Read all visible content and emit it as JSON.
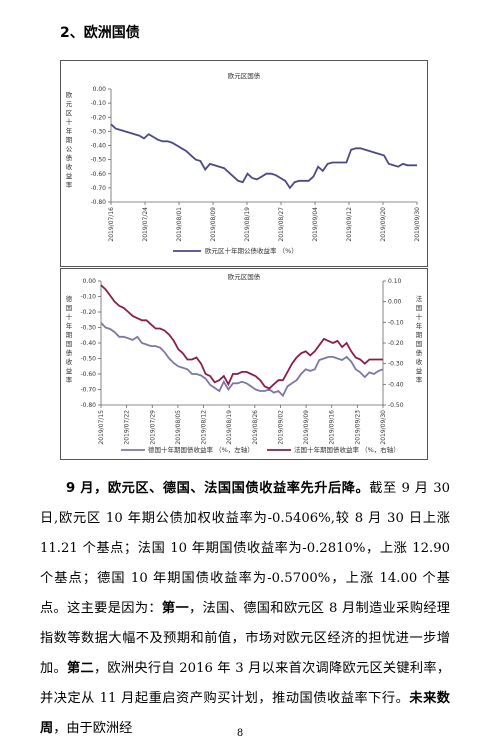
{
  "heading": "2、欧洲国债",
  "chart_data": [
    {
      "type": "line",
      "title": "欧元区国债",
      "ylabel": [
        "欧",
        "元",
        "区",
        "十",
        "年",
        "期",
        "公",
        "债",
        "收",
        "益",
        "率"
      ],
      "ylim": [
        -0.8,
        0.0
      ],
      "yticks": [
        "0.00",
        "-0.10",
        "-0.20",
        "-0.30",
        "-0.40",
        "-0.50",
        "-0.60",
        "-0.70",
        "-0.80"
      ],
      "xticks": [
        "2019/07/16",
        "2019/07/24",
        "2019/08/01",
        "2019/08/09",
        "2019/08/19",
        "2019/08/27",
        "2019/09/04",
        "2019/09/12",
        "2019/09/20",
        "2019/09/30"
      ],
      "x_start": "2019/07/16",
      "x_end": "2019/09/30",
      "grid": false,
      "legend": "bottom",
      "series": [
        {
          "name": "欧元区十年期公债收益率 （%）",
          "color": "#4a4a86",
          "values": [
            -0.25,
            -0.28,
            -0.29,
            -0.3,
            -0.31,
            -0.32,
            -0.33,
            -0.35,
            -0.32,
            -0.34,
            -0.36,
            -0.37,
            -0.37,
            -0.38,
            -0.4,
            -0.42,
            -0.44,
            -0.47,
            -0.5,
            -0.51,
            -0.57,
            -0.53,
            -0.54,
            -0.55,
            -0.56,
            -0.59,
            -0.62,
            -0.65,
            -0.66,
            -0.6,
            -0.63,
            -0.64,
            -0.62,
            -0.6,
            -0.6,
            -0.61,
            -0.63,
            -0.65,
            -0.7,
            -0.66,
            -0.65,
            -0.65,
            -0.65,
            -0.62,
            -0.55,
            -0.58,
            -0.53,
            -0.52,
            -0.52,
            -0.52,
            -0.52,
            -0.43,
            -0.42,
            -0.42,
            -0.43,
            -0.44,
            -0.45,
            -0.46,
            -0.47,
            -0.53,
            -0.54,
            -0.55,
            -0.53,
            -0.54,
            -0.54,
            -0.54
          ]
        }
      ]
    },
    {
      "type": "line",
      "title": "欧元区国债",
      "ylabel_left": [
        "德",
        "国",
        "十",
        "年",
        "期",
        "国",
        "债",
        "收",
        "益",
        "率"
      ],
      "ylabel_right": [
        "法",
        "国",
        "十",
        "年",
        "期",
        "国",
        "债",
        "收",
        "益",
        "率"
      ],
      "ylim_left": [
        -0.8,
        0.0
      ],
      "ylim_right": [
        -0.5,
        0.1
      ],
      "yticks_left": [
        "0.00",
        "-0.10",
        "-0.20",
        "-0.30",
        "-0.40",
        "-0.50",
        "-0.60",
        "-0.70",
        "-0.80"
      ],
      "yticks_right": [
        "0.10",
        "0.00",
        "-0.10",
        "-0.20",
        "-0.30",
        "-0.40",
        "-0.50"
      ],
      "xticks": [
        "2019/07/15",
        "2019/07/22",
        "2019/07/29",
        "2019/08/05",
        "2019/08/12",
        "2019/08/19",
        "2019/08/26",
        "2019/09/02",
        "2019/09/09",
        "2019/09/16",
        "2019/09/23",
        "2019/09/30"
      ],
      "grid": false,
      "legend": "bottom",
      "series": [
        {
          "name": "德国十年期国债收益率 （%，左轴）",
          "color": "#7a78a8",
          "axis": "left",
          "values": [
            -0.27,
            -0.3,
            -0.31,
            -0.33,
            -0.36,
            -0.36,
            -0.37,
            -0.38,
            -0.36,
            -0.4,
            -0.41,
            -0.42,
            -0.42,
            -0.43,
            -0.46,
            -0.5,
            -0.53,
            -0.55,
            -0.56,
            -0.57,
            -0.6,
            -0.6,
            -0.61,
            -0.63,
            -0.67,
            -0.69,
            -0.71,
            -0.65,
            -0.7,
            -0.66,
            -0.66,
            -0.65,
            -0.66,
            -0.68,
            -0.7,
            -0.71,
            -0.71,
            -0.7,
            -0.72,
            -0.71,
            -0.74,
            -0.68,
            -0.66,
            -0.64,
            -0.6,
            -0.57,
            -0.58,
            -0.57,
            -0.51,
            -0.5,
            -0.49,
            -0.49,
            -0.5,
            -0.51,
            -0.49,
            -0.52,
            -0.57,
            -0.59,
            -0.62,
            -0.59,
            -0.6,
            -0.58,
            -0.57
          ]
        },
        {
          "name": "法国十年期国债收益率 （%，右轴）",
          "color": "#8a1e48",
          "axis": "right",
          "values": [
            0.08,
            0.06,
            0.03,
            0.0,
            -0.02,
            -0.03,
            -0.05,
            -0.07,
            -0.08,
            -0.09,
            -0.09,
            -0.11,
            -0.13,
            -0.13,
            -0.14,
            -0.16,
            -0.19,
            -0.23,
            -0.25,
            -0.28,
            -0.28,
            -0.27,
            -0.3,
            -0.35,
            -0.36,
            -0.39,
            -0.38,
            -0.36,
            -0.4,
            -0.35,
            -0.35,
            -0.34,
            -0.34,
            -0.35,
            -0.36,
            -0.38,
            -0.41,
            -0.42,
            -0.4,
            -0.38,
            -0.38,
            -0.34,
            -0.3,
            -0.27,
            -0.25,
            -0.24,
            -0.26,
            -0.24,
            -0.21,
            -0.18,
            -0.19,
            -0.2,
            -0.19,
            -0.22,
            -0.2,
            -0.24,
            -0.27,
            -0.28,
            -0.3,
            -0.28,
            -0.28,
            -0.28,
            -0.28
          ]
        }
      ]
    }
  ],
  "paragraph": {
    "lead": "9 月，欧元区、德国、法国国债收益率先升后降。",
    "body1": "截至 9 月 30 日,欧元区 10 年期公债加权收益率为-0.5406%,较 8 月 30 日上涨 11.21 个基点；法国 10 年期国债收益率为-0.2810%，上涨 12.90 个基点；德国 10 年期国债收益率为-0.5700%，上涨 14.00 个基点。这主要是因为：",
    "first": "第一",
    "body2": "，法国、德国和欧元区 8 月制造业采购经理指数等数据大幅不及预期和前值，市场对欧元区经济的担忧进一步增加。",
    "second": "第二",
    "body3": "，欧洲央行自 2016 年 3 月以来首次调降欧元区关键利率，并决定从 11 月起重启资产购买计划，推动国债收益率下行。",
    "future": "未来数周",
    "body4": "，由于欧洲经"
  },
  "page_number": "8"
}
